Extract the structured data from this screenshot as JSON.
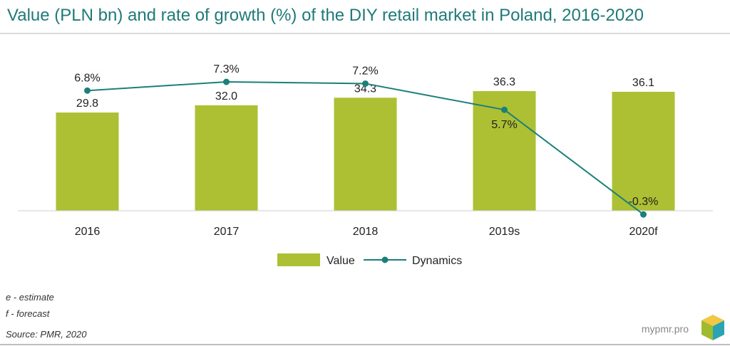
{
  "title": "Value (PLN bn) and rate of growth (%) of the DIY retail market in Poland, 2016-2020",
  "notes": {
    "estimate": "e - estimate",
    "forecast": "f - forecast",
    "source": "Source: PMR, 2020"
  },
  "brand": "mypmr.pro",
  "colors": {
    "bar": "#adbf32",
    "line": "#1b8079",
    "title": "#1f7a78"
  },
  "chart_data": {
    "type": "bar",
    "categories": [
      "2016",
      "2017",
      "2018",
      "2019s",
      "2020f"
    ],
    "series": [
      {
        "name": "Value",
        "type": "bar",
        "values": [
          29.8,
          32.0,
          34.3,
          36.3,
          36.1
        ],
        "labels": [
          "29.8",
          "32.0",
          "34.3",
          "36.3",
          "36.1"
        ]
      },
      {
        "name": "Dynamics",
        "type": "line",
        "values": [
          6.8,
          7.3,
          7.2,
          5.7,
          -0.3
        ],
        "labels": [
          "6.8%",
          "7.3%",
          "7.2%",
          "5.7%",
          "-0.3%"
        ]
      }
    ],
    "legend": "bottom-center",
    "grid": false
  }
}
